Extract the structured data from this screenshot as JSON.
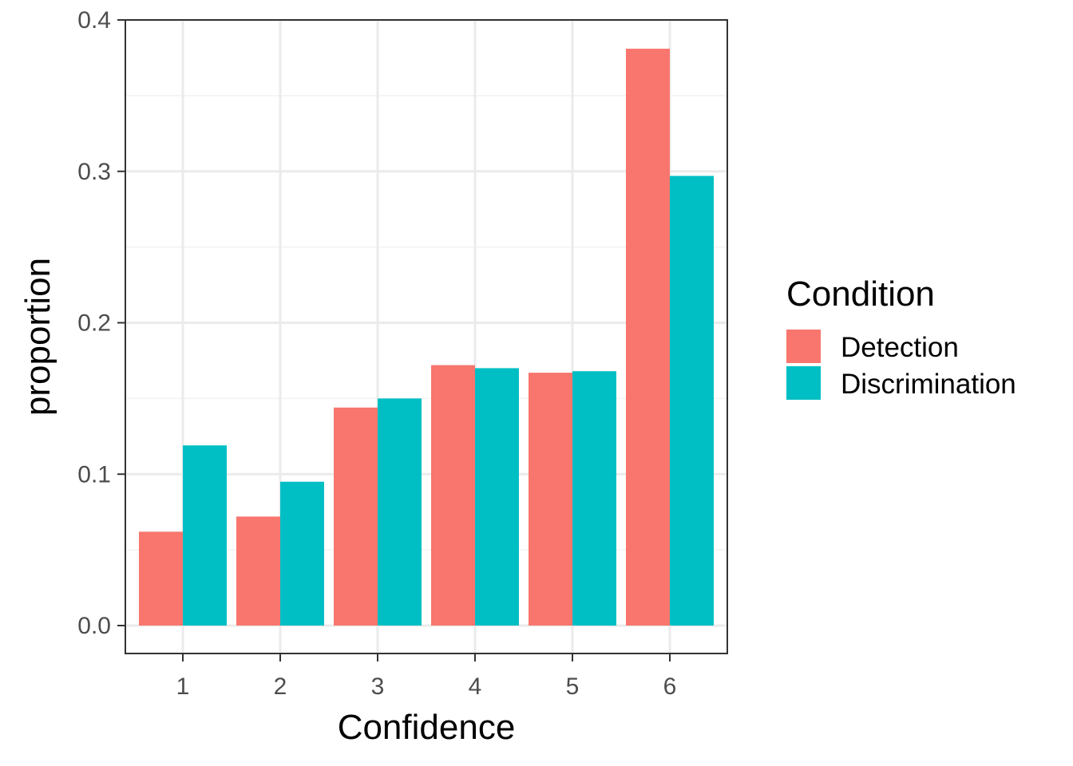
{
  "chart_data": {
    "type": "bar",
    "categories": [
      "1",
      "2",
      "3",
      "4",
      "5",
      "6"
    ],
    "series": [
      {
        "name": "Detection",
        "color": "#F8766D",
        "values": [
          0.062,
          0.072,
          0.144,
          0.172,
          0.167,
          0.381
        ]
      },
      {
        "name": "Discrimination",
        "color": "#00BFC4",
        "values": [
          0.119,
          0.095,
          0.15,
          0.17,
          0.168,
          0.297
        ]
      }
    ],
    "xlabel": "Confidence",
    "ylabel": "proportion",
    "ylim": [
      0,
      0.4
    ],
    "yticks": [
      "0.0",
      "0.1",
      "0.2",
      "0.3",
      "0.4"
    ],
    "ytick_values": [
      0,
      0.1,
      0.2,
      0.3,
      0.4
    ],
    "grid": true,
    "legend": {
      "title": "Condition",
      "position": "right"
    }
  }
}
